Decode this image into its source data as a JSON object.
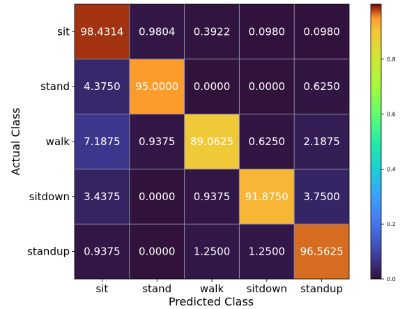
{
  "chart_data": {
    "type": "heatmap",
    "title": "",
    "xlabel": "Predicted Class",
    "ylabel": "Actual Class",
    "x_categories": [
      "sit",
      "stand",
      "walk",
      "sitdown",
      "standup"
    ],
    "y_categories": [
      "sit",
      "stand",
      "walk",
      "sitdown",
      "standup"
    ],
    "values": [
      [
        98.4314,
        0.9804,
        0.3922,
        0.098,
        0.098
      ],
      [
        4.375,
        95.0,
        0.0,
        0.0,
        0.625
      ],
      [
        7.1875,
        0.9375,
        89.0625,
        0.625,
        2.1875
      ],
      [
        3.4375,
        0.0,
        0.9375,
        91.875,
        3.75
      ],
      [
        0.9375,
        0.0,
        1.25,
        1.25,
        96.5625
      ]
    ],
    "value_labels": [
      [
        "98.4314",
        "0.9804",
        "0.3922",
        "0.0980",
        "0.0980"
      ],
      [
        "4.3750",
        "95.0000",
        "0.0000",
        "0.0000",
        "0.6250"
      ],
      [
        "7.1875",
        "0.9375",
        "89.0625",
        "0.6250",
        "2.1875"
      ],
      [
        "3.4375",
        "0.0000",
        "0.9375",
        "91.8750",
        "3.7500"
      ],
      [
        "0.9375",
        "0.0000",
        "1.2500",
        "1.2500",
        "96.5625"
      ]
    ],
    "colorbar": {
      "colormap": "turbo",
      "range": [
        0,
        1
      ],
      "ticks": [
        0.0,
        0.2,
        0.4,
        0.6,
        0.8
      ],
      "tick_labels": [
        "0.0",
        "0.2",
        "0.4",
        "0.6",
        "0.8"
      ]
    },
    "grid": true,
    "grid_color": "#8a8aa8"
  }
}
